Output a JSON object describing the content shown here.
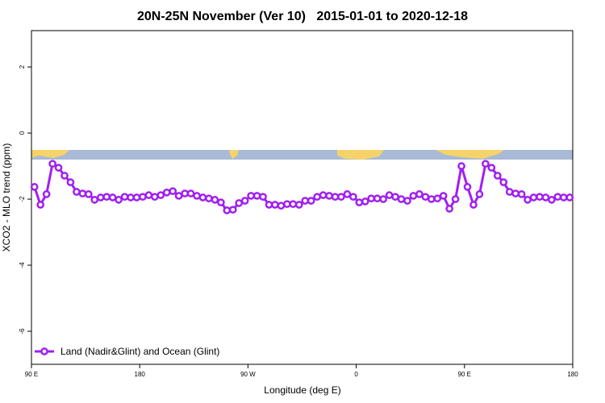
{
  "chart_data": {
    "type": "line",
    "title": "20N-25N November (Ver 10)   2015-01-01 to 2020-12-18",
    "xlabel": "Longitude (deg E)",
    "ylabel": "XCO2 - MLO trend (ppm)",
    "xlim": [
      90,
      540
    ],
    "xticks": [
      {
        "value": 90,
        "label": "90 E"
      },
      {
        "value": 180,
        "label": "180"
      },
      {
        "value": 270,
        "label": "90 W"
      },
      {
        "value": 360,
        "label": "0"
      },
      {
        "value": 450,
        "label": "90 E"
      },
      {
        "value": 540,
        "label": "180"
      }
    ],
    "ylim": [
      -7,
      3.1
    ],
    "yticks": [
      -6,
      -4,
      -2,
      0,
      2
    ],
    "legend": "bottom-left",
    "x": [
      92.5,
      97.5,
      102.5,
      107.5,
      112.5,
      117.5,
      122.5,
      127.5,
      132.5,
      137.5,
      142.5,
      147.5,
      152.5,
      157.5,
      162.5,
      167.5,
      172.5,
      177.5,
      182.5,
      187.5,
      192.5,
      197.5,
      202.5,
      207.5,
      212.5,
      217.5,
      222.5,
      227.5,
      232.5,
      237.5,
      242.5,
      247.5,
      252.5,
      257.5,
      262.5,
      267.5,
      272.5,
      277.5,
      282.5,
      287.5,
      292.5,
      297.5,
      302.5,
      307.5,
      312.5,
      317.5,
      322.5,
      327.5,
      332.5,
      337.5,
      342.5,
      347.5,
      352.5,
      357.5,
      362.5,
      367.5,
      372.5,
      377.5,
      382.5,
      387.5,
      392.5,
      397.5,
      402.5,
      407.5,
      412.5,
      417.5,
      422.5,
      427.5,
      432.5,
      437.5,
      442.5,
      447.5,
      452.5,
      457.5,
      462.5,
      467.5,
      472.5,
      477.5,
      482.5,
      487.5,
      492.5,
      497.5,
      502.5,
      507.5,
      512.5,
      517.5,
      522.5,
      527.5,
      532.5,
      537.5
    ],
    "series": [
      {
        "name": "Land (Nadir&Glint) and Ocean (Glint)",
        "color": "#a020f0",
        "values": [
          -1.63,
          -2.17,
          -1.85,
          -0.93,
          -1.05,
          -1.29,
          -1.49,
          -1.78,
          -1.83,
          -1.85,
          -2.02,
          -1.95,
          -1.93,
          -1.95,
          -2.02,
          -1.93,
          -1.95,
          -1.95,
          -1.93,
          -1.88,
          -1.93,
          -1.88,
          -1.8,
          -1.76,
          -1.9,
          -1.83,
          -1.83,
          -1.9,
          -1.95,
          -1.98,
          -2.02,
          -2.1,
          -2.34,
          -2.32,
          -2.12,
          -2.05,
          -1.9,
          -1.9,
          -1.93,
          -2.17,
          -2.17,
          -2.2,
          -2.15,
          -2.15,
          -2.17,
          -2.05,
          -2.05,
          -1.93,
          -1.88,
          -1.9,
          -1.93,
          -1.93,
          -1.85,
          -1.93,
          -2.1,
          -2.07,
          -1.98,
          -1.98,
          -2.0,
          -1.88,
          -1.93,
          -2.0,
          -2.05,
          -1.9,
          -1.85,
          -1.93,
          -2.0,
          -1.98,
          -1.9,
          -2.29,
          -2.0,
          -1.0,
          -1.63,
          -2.17,
          -1.85,
          -0.93,
          -1.05,
          -1.29,
          -1.49,
          -1.78,
          -1.83,
          -1.85,
          -2.02,
          -1.95,
          -1.93,
          -1.95,
          -2.02,
          -1.93,
          -1.95,
          -1.95
        ]
      }
    ]
  }
}
